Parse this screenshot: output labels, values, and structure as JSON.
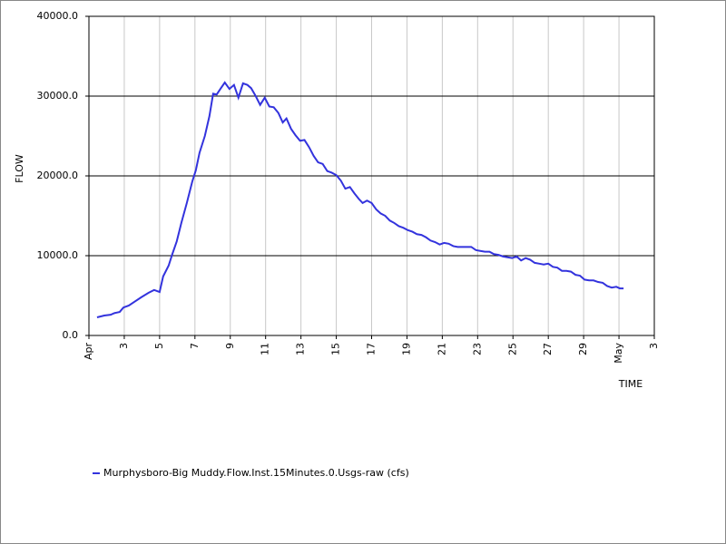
{
  "chart_data": {
    "type": "line",
    "x_label": "TIME",
    "y_label": "FLOW",
    "xlim": [
      1,
      33
    ],
    "ylim": [
      0,
      40000
    ],
    "xticks": [
      {
        "value": 1,
        "label": "Apr"
      },
      3,
      5,
      7,
      9,
      11,
      13,
      15,
      17,
      19,
      21,
      23,
      25,
      27,
      29,
      {
        "value": 31,
        "label": "May"
      },
      {
        "value": 33,
        "label": "3"
      }
    ],
    "yticks": [
      {
        "value": 0,
        "label": "0.0"
      },
      {
        "value": 10000,
        "label": "10000.0"
      },
      {
        "value": 20000,
        "label": "20000.0"
      },
      {
        "value": 30000,
        "label": "30000.0"
      },
      {
        "value": 40000,
        "label": "40000.0"
      }
    ],
    "grid": true,
    "series": [
      {
        "name": "Murphysboro-Big Muddy.Flow.Inst.15Minutes.0.Usgs-raw (cfs)",
        "color": "#3333dd",
        "x": [
          1.46,
          1.87,
          2.23,
          2.44,
          2.74,
          2.95,
          3.26,
          3.56,
          3.97,
          4.38,
          4.69,
          5.0,
          5.2,
          5.51,
          5.72,
          5.97,
          6.23,
          6.54,
          6.85,
          7.05,
          7.26,
          7.56,
          7.82,
          8.03,
          8.23,
          8.44,
          8.69,
          8.95,
          9.21,
          9.46,
          9.72,
          9.97,
          10.18,
          10.44,
          10.69,
          10.95,
          11.21,
          11.46,
          11.72,
          11.97,
          12.18,
          12.44,
          12.69,
          12.95,
          13.2,
          13.46,
          13.72,
          13.97,
          14.23,
          14.49,
          14.74,
          15.0,
          15.26,
          15.51,
          15.77,
          16.03,
          16.28,
          16.49,
          16.74,
          17.0,
          17.26,
          17.51,
          17.77,
          18.03,
          18.28,
          18.54,
          18.79,
          19.05,
          19.31,
          19.56,
          19.82,
          20.08,
          20.33,
          20.59,
          20.85,
          21.1,
          21.36,
          21.62,
          21.87,
          22.13,
          22.38,
          22.64,
          22.9,
          23.15,
          23.41,
          23.67,
          23.92,
          24.18,
          24.44,
          24.69,
          24.95,
          25.21,
          25.46,
          25.72,
          25.97,
          26.23,
          26.49,
          26.74,
          27.0,
          27.26,
          27.51,
          27.77,
          28.03,
          28.28,
          28.54,
          28.79,
          29.05,
          29.31,
          29.56,
          29.82,
          30.08,
          30.33,
          30.59,
          30.85,
          31.05,
          31.26
        ],
        "values": [
          2270,
          2500,
          2600,
          2800,
          2950,
          3500,
          3750,
          4200,
          4800,
          5350,
          5700,
          5450,
          7400,
          8750,
          10200,
          11800,
          14100,
          16600,
          19300,
          20700,
          22900,
          25000,
          27500,
          30300,
          30200,
          30900,
          31700,
          30900,
          31400,
          29800,
          31600,
          31400,
          31000,
          30000,
          28900,
          29800,
          28700,
          28600,
          27900,
          26700,
          27200,
          25900,
          25100,
          24400,
          24500,
          23600,
          22500,
          21700,
          21500,
          20600,
          20400,
          20100,
          19400,
          18400,
          18600,
          17800,
          17100,
          16600,
          16900,
          16600,
          15800,
          15300,
          15000,
          14400,
          14100,
          13700,
          13500,
          13200,
          13000,
          12700,
          12600,
          12300,
          11900,
          11700,
          11400,
          11600,
          11500,
          11200,
          11100,
          11100,
          11100,
          11100,
          10700,
          10600,
          10500,
          10500,
          10200,
          10100,
          9900,
          9800,
          9700,
          9900,
          9400,
          9700,
          9500,
          9100,
          9000,
          8900,
          9000,
          8600,
          8500,
          8100,
          8100,
          8000,
          7600,
          7500,
          7000,
          6900,
          6900,
          6700,
          6600,
          6200,
          6000,
          6100,
          5900,
          5900
        ]
      }
    ]
  }
}
